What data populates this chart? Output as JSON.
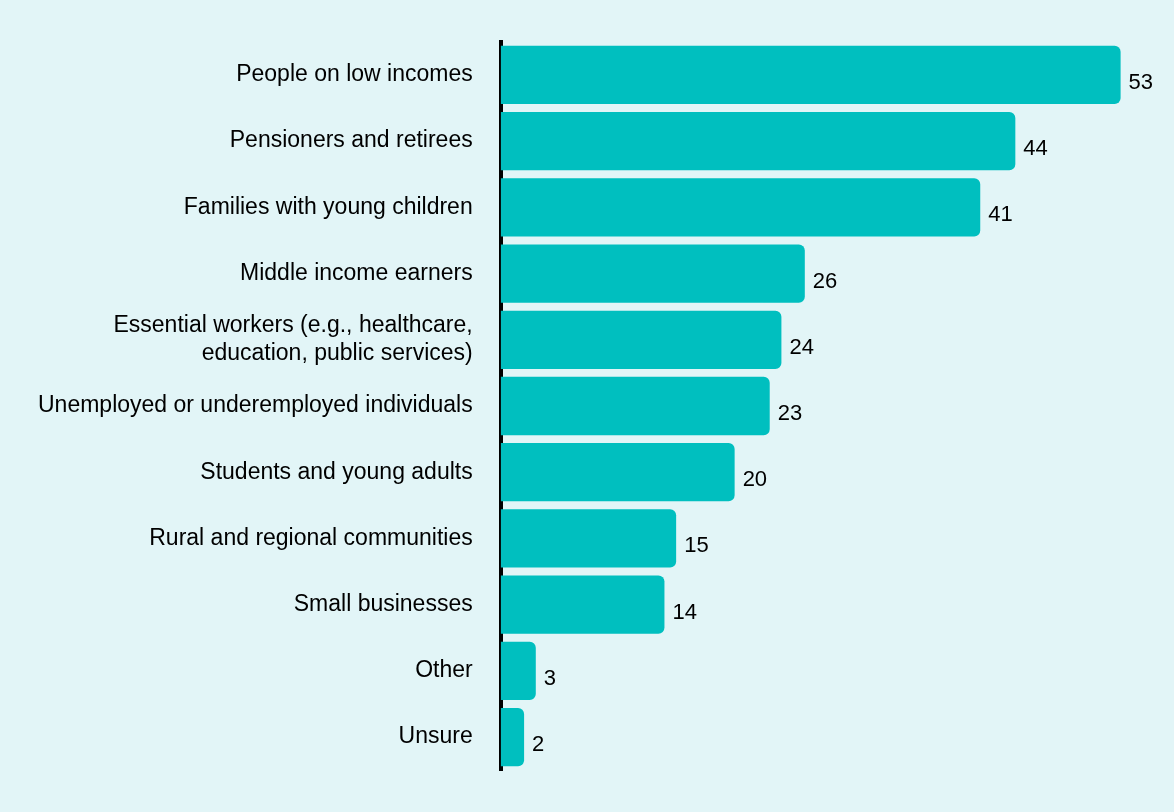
{
  "chart_data": {
    "type": "bar",
    "orientation": "horizontal",
    "data_labels": true,
    "categories": [
      "People on low incomes",
      "Pensioners and retirees",
      "Families with young children",
      "Middle income earners",
      "Essential workers (e.g., healthcare, education, public services)",
      "Unemployed or underemployed individuals",
      "Students and young adults",
      "Rural and regional communities",
      "Small businesses",
      "Other",
      "Unsure"
    ],
    "values": [
      53,
      44,
      41,
      26,
      24,
      23,
      20,
      15,
      14,
      3,
      2
    ],
    "color": "#00bfbf"
  }
}
